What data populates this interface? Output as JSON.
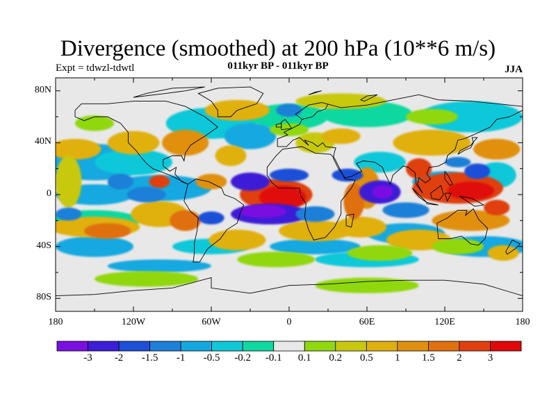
{
  "title": "Divergence (smoothed) at 200 hPa (10**6 m/s)",
  "experiment": "Expt = tdwzl-tdwtl",
  "period": "011kyr BP - 011kyr BP",
  "season": "JJA",
  "lat_labels": [
    "80N",
    "40N",
    "0",
    "40S",
    "80S"
  ],
  "lon_labels": [
    "180",
    "120W",
    "60W",
    "0",
    "60E",
    "120E",
    "180"
  ],
  "colorbar": {
    "colors": [
      "#7a10e0",
      "#3d1fd8",
      "#1e4fd8",
      "#1e7fd8",
      "#14a8e0",
      "#10c8d8",
      "#10d8a0",
      "#e8e8e8",
      "#90d810",
      "#c8c810",
      "#e0b010",
      "#e09010",
      "#e07010",
      "#e04010",
      "#e00808"
    ],
    "labels": [
      "-3",
      "-2",
      "-1.5",
      "-1",
      "-0.5",
      "-0.2",
      "-0.1",
      "0.1",
      "0.2",
      "0.5",
      "1",
      "1.5",
      "2",
      "3"
    ]
  }
}
